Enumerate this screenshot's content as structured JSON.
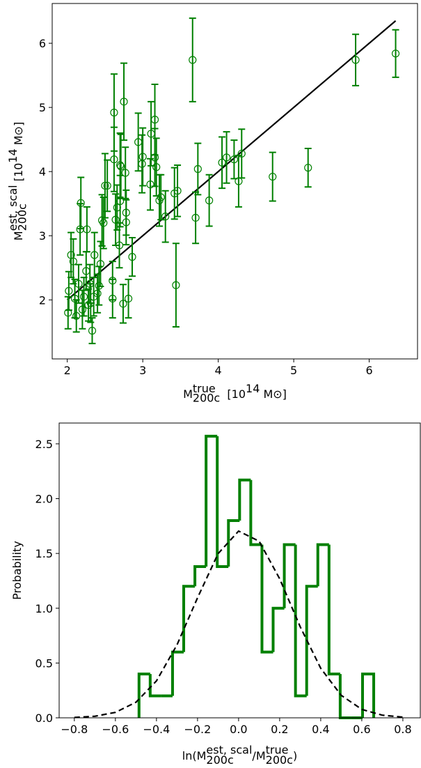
{
  "chart_data": [
    {
      "type": "errorbar",
      "xlabel": [
        {
          "text": "M"
        },
        {
          "sup": "true",
          "sub": "200c"
        },
        {
          "text": "  [10"
        },
        {
          "sup": "14"
        },
        {
          "text": " M⊙]"
        }
      ],
      "ylabel": [
        {
          "text": "M"
        },
        {
          "sup": "est, scal",
          "sub": "200c"
        },
        {
          "text": " [10"
        },
        {
          "sup": "14"
        },
        {
          "text": " M⊙]"
        }
      ],
      "xlim": [
        1.8,
        6.64
      ],
      "ylim": [
        1.08,
        6.62
      ],
      "xticks": [
        2,
        3,
        4,
        5,
        6
      ],
      "yticks": [
        2,
        3,
        4,
        5,
        6
      ],
      "series": [
        {
          "kind": "errorbar",
          "color": "#008000",
          "x": [
            6.35,
            5.82,
            5.19,
            4.72,
            4.31,
            4.27,
            4.21,
            4.11,
            4.05,
            3.88,
            3.73,
            3.7,
            3.66,
            3.46,
            3.42,
            3.44,
            3.3,
            3.24,
            3.22,
            3.18,
            3.16,
            3.16,
            3.11,
            3.1,
            3.0,
            2.99,
            2.94,
            2.86,
            2.81,
            2.78,
            2.78,
            2.77,
            2.75,
            2.74,
            2.7,
            2.71,
            2.7,
            2.69,
            2.66,
            2.64,
            2.62,
            2.62,
            2.6,
            2.6,
            2.53,
            2.5,
            2.48,
            2.46,
            2.44,
            2.42,
            2.4,
            2.36,
            2.33,
            2.3,
            2.28,
            2.25,
            2.22,
            2.2,
            2.18,
            2.17,
            2.15,
            2.12,
            2.1,
            2.08,
            2.05,
            2.02,
            2.01,
            2.26,
            2.31,
            2.35
          ],
          "values": [
            5.84,
            5.74,
            4.06,
            3.92,
            4.28,
            3.85,
            4.19,
            4.22,
            4.14,
            3.55,
            4.04,
            3.28,
            5.74,
            3.7,
            3.66,
            2.23,
            3.3,
            3.6,
            3.55,
            4.07,
            4.81,
            4.22,
            4.59,
            3.8,
            4.23,
            4.12,
            4.46,
            2.67,
            2.02,
            3.21,
            3.36,
            3.98,
            5.09,
            1.94,
            3.54,
            4.08,
            4.1,
            2.85,
            3.44,
            3.25,
            4.92,
            4.19,
            2.3,
            2.02,
            3.78,
            3.78,
            3.2,
            3.24,
            2.56,
            2.22,
            2.1,
            2.7,
            1.52,
            2.25,
            1.92,
            2.45,
            2.05,
            1.85,
            3.51,
            3.1,
            2.25,
            1.75,
            2.02,
            2.6,
            2.7,
            2.14,
            1.8,
            3.1,
            1.95,
            2.05
          ],
          "errors": [
            0.37,
            0.4,
            0.3,
            0.38,
            0.38,
            0.4,
            0.3,
            0.4,
            0.4,
            0.4,
            0.4,
            0.4,
            0.65,
            0.4,
            0.4,
            0.65,
            0.4,
            0.35,
            0.4,
            0.45,
            0.55,
            0.45,
            0.5,
            0.4,
            0.45,
            0.45,
            0.45,
            0.3,
            0.3,
            0.35,
            0.35,
            0.4,
            0.6,
            0.3,
            0.4,
            0.5,
            0.5,
            0.35,
            0.35,
            0.4,
            0.6,
            0.5,
            0.3,
            0.3,
            0.4,
            0.5,
            0.4,
            0.4,
            0.35,
            0.3,
            0.3,
            0.35,
            0.2,
            0.3,
            0.25,
            0.3,
            0.3,
            0.3,
            0.4,
            0.4,
            0.3,
            0.25,
            0.3,
            0.35,
            0.35,
            0.3,
            0.25,
            0.35,
            0.3,
            0.3
          ]
        },
        {
          "kind": "line",
          "color": "#000000",
          "x": [
            2.0,
            6.35
          ],
          "values": [
            2.0,
            6.35
          ]
        }
      ]
    },
    {
      "type": "histogram",
      "xlabel": [
        {
          "text": "ln(M"
        },
        {
          "sup": "est, scal",
          "sub": "200c"
        },
        {
          "text": "/M"
        },
        {
          "sup": "true",
          "sub": "200c"
        },
        {
          "text": ")"
        }
      ],
      "ylabel": [
        {
          "text": "Probability"
        }
      ],
      "xlim": [
        -0.874,
        0.885
      ],
      "ylim": [
        0,
        2.69
      ],
      "xticks": [
        {
          "value": -0.8,
          "label": "−0.8"
        },
        {
          "value": -0.6,
          "label": "−0.6"
        },
        {
          "value": -0.4,
          "label": "−0.4"
        },
        {
          "value": -0.2,
          "label": "−0.2"
        },
        {
          "value": 0,
          "label": "0.0"
        },
        0.2,
        0.4,
        0.6,
        0.8
      ],
      "yticks": [
        {
          "value": 0,
          "label": "0.0"
        },
        0.5,
        {
          "value": 1,
          "label": "1.0"
        },
        1.5,
        {
          "value": 2,
          "label": "2.0"
        },
        2.5
      ],
      "color": "#008000",
      "bins": [
        -0.485,
        -0.4306,
        -0.3761,
        -0.3217,
        -0.2673,
        -0.2128,
        -0.1584,
        -0.104,
        -0.0495,
        0.0049,
        0.0593,
        0.1138,
        0.1682,
        0.2226,
        0.2771,
        0.3315,
        0.3859,
        0.4404,
        0.4948,
        0.5492,
        0.6037,
        0.6581
      ],
      "values": [
        0.4,
        0.2,
        0.2,
        0.6,
        1.2,
        1.38,
        2.57,
        1.38,
        1.8,
        2.17,
        1.58,
        0.6,
        1.0,
        1.58,
        0.2,
        1.2,
        1.58,
        0.4,
        0,
        0,
        0.4
      ],
      "fit": {
        "color": "#000000",
        "dashed": true,
        "x": [
          -0.8,
          -0.7,
          -0.6,
          -0.5,
          -0.4,
          -0.3,
          -0.2,
          -0.1,
          0,
          0.1,
          0.2,
          0.3,
          0.4,
          0.5,
          0.6,
          0.7,
          0.8
        ],
        "values": [
          0.0035,
          0.0145,
          0.0496,
          0.142,
          0.337,
          0.666,
          1.095,
          1.498,
          1.704,
          1.612,
          1.269,
          0.831,
          0.452,
          0.205,
          0.077,
          0.024,
          0.0063
        ]
      }
    }
  ]
}
